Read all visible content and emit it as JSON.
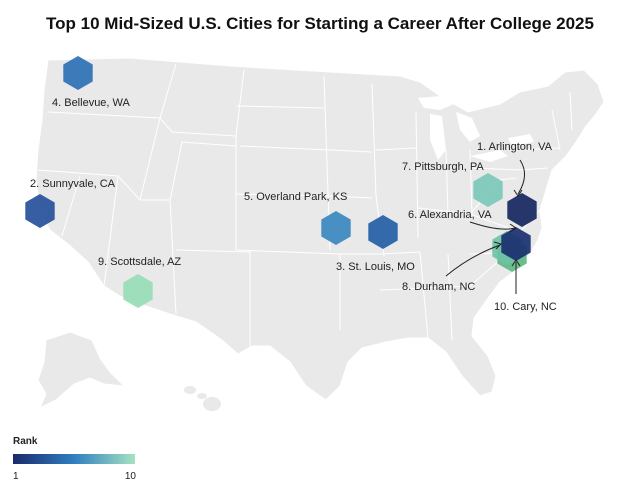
{
  "title": "Top 10 Mid-Sized U.S. Cities for Starting a Career After College 2025",
  "legend": {
    "title": "Rank",
    "min_label": "1",
    "max_label": "10",
    "color_low": "#1a2a6c",
    "color_mid": "#2f7fbf",
    "color_high": "#a6e3c2"
  },
  "colors": {
    "land": "#e9e9e9",
    "state_border": "#ffffff",
    "water": "#ffffff"
  },
  "cities": [
    {
      "rank": 1,
      "label": "1. Arlington, VA",
      "state": "VA",
      "lon": -77.1,
      "lat": 38.88,
      "color": "#15265e"
    },
    {
      "rank": 2,
      "label": "2. Sunnyvale, CA",
      "state": "CA",
      "lon": -122.04,
      "lat": 37.37,
      "color": "#264f9a"
    },
    {
      "rank": 3,
      "label": "3. St. Louis, MO",
      "state": "MO",
      "lon": -90.2,
      "lat": 38.63,
      "color": "#245ea6"
    },
    {
      "rank": 4,
      "label": "4. Bellevue, WA",
      "state": "WA",
      "lon": -122.2,
      "lat": 47.61,
      "color": "#2e70b4"
    },
    {
      "rank": 5,
      "label": "5. Overland Park, KS",
      "state": "KS",
      "lon": -94.67,
      "lat": 38.98,
      "color": "#3a87bf"
    },
    {
      "rank": 6,
      "label": "6. Alexandria, VA",
      "state": "VA",
      "lon": -77.05,
      "lat": 38.8,
      "color": "#1a2f70"
    },
    {
      "rank": 7,
      "label": "7. Pittsburgh, PA",
      "state": "PA",
      "lon": -79.99,
      "lat": 40.44,
      "color": "#7cc8b8"
    },
    {
      "rank": 8,
      "label": "8. Durham, NC",
      "state": "NC",
      "lon": -78.9,
      "lat": 35.99,
      "color": "#6fc2a6"
    },
    {
      "rank": 9,
      "label": "9. Scottsdale, AZ",
      "state": "AZ",
      "lon": -111.93,
      "lat": 33.49,
      "color": "#98dcb6"
    },
    {
      "rank": 10,
      "label": "10. Cary, NC",
      "state": "NC",
      "lon": -78.78,
      "lat": 35.79,
      "color": "#60b884"
    }
  ]
}
